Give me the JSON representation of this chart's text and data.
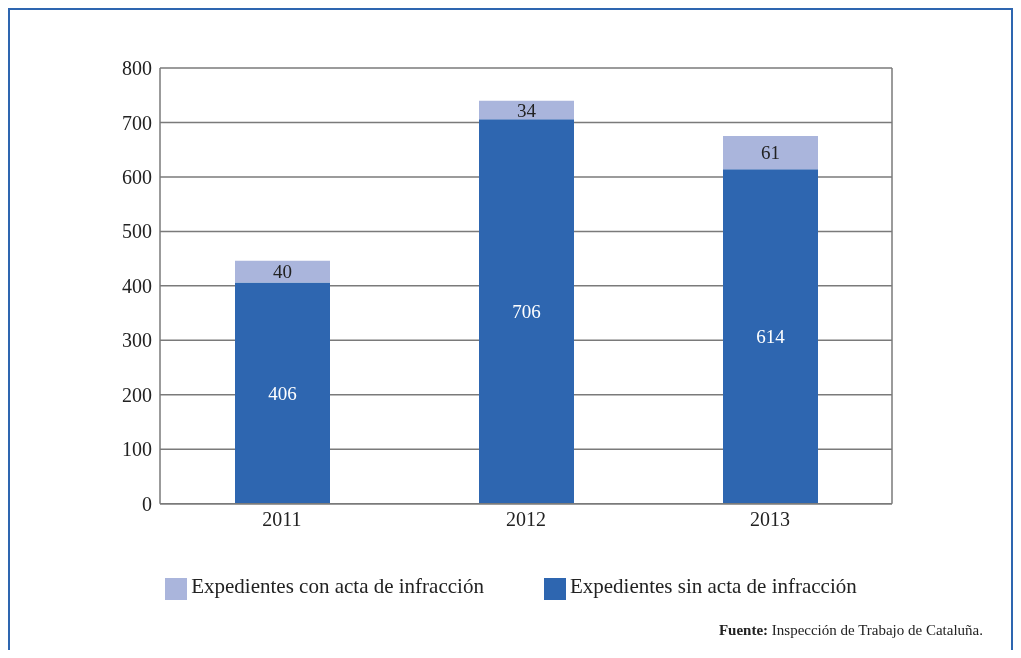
{
  "chart_data": {
    "type": "bar",
    "stacked": true,
    "categories": [
      "2011",
      "2012",
      "2013"
    ],
    "series": [
      {
        "name": "Expedientes sin acta de infracción",
        "color": "#2e66b0",
        "values": [
          406,
          706,
          614
        ]
      },
      {
        "name": "Expedientes con acta de infracción",
        "color": "#aab5dc",
        "values": [
          40,
          34,
          61
        ]
      }
    ],
    "ylim": [
      0,
      800
    ],
    "yticks": [
      0,
      100,
      200,
      300,
      400,
      500,
      600,
      700,
      800
    ],
    "grid": "y",
    "legend": "bottom",
    "data_labels": true,
    "annotations": [
      "Fuente: Inspección de Trabajo de Cataluña."
    ]
  }
}
